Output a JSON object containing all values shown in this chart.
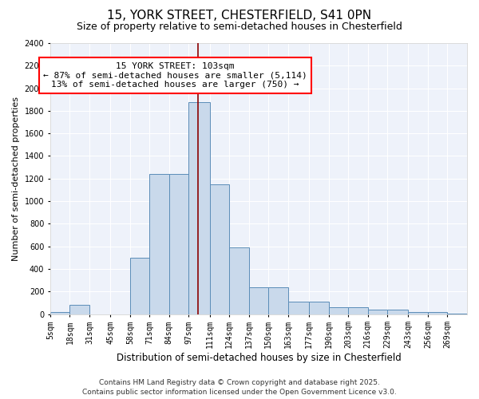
{
  "title1": "15, YORK STREET, CHESTERFIELD, S41 0PN",
  "title2": "Size of property relative to semi-detached houses in Chesterfield",
  "xlabel": "Distribution of semi-detached houses by size in Chesterfield",
  "ylabel": "Number of semi-detached properties",
  "footer1": "Contains HM Land Registry data © Crown copyright and database right 2025.",
  "footer2": "Contains public sector information licensed under the Open Government Licence v3.0.",
  "annotation_title": "15 YORK STREET: 103sqm",
  "annotation_line1": "← 87% of semi-detached houses are smaller (5,114)",
  "annotation_line2": "13% of semi-detached houses are larger (750) →",
  "property_size": 103,
  "bin_edges": [
    5,
    18,
    31,
    45,
    58,
    71,
    84,
    97,
    111,
    124,
    137,
    150,
    163,
    177,
    190,
    203,
    216,
    229,
    243,
    256,
    269,
    282
  ],
  "bar_heights": [
    20,
    80,
    0,
    0,
    500,
    1240,
    1240,
    1880,
    1150,
    590,
    240,
    240,
    110,
    110,
    60,
    60,
    40,
    40,
    20,
    20,
    5
  ],
  "bar_color": "#c9d9eb",
  "bar_edge_color": "#5b8db8",
  "redline_color": "#8b0000",
  "ylim": [
    0,
    2400
  ],
  "xlim_left": 5,
  "xlim_right": 282,
  "background_color": "#eef2fa",
  "grid_color": "#ffffff",
  "yticks": [
    0,
    200,
    400,
    600,
    800,
    1000,
    1200,
    1400,
    1600,
    1800,
    2000,
    2200,
    2400
  ],
  "title1_fontsize": 11,
  "title2_fontsize": 9,
  "xlabel_fontsize": 8.5,
  "ylabel_fontsize": 8,
  "tick_fontsize": 7,
  "annotation_fontsize": 8,
  "footer_fontsize": 6.5
}
